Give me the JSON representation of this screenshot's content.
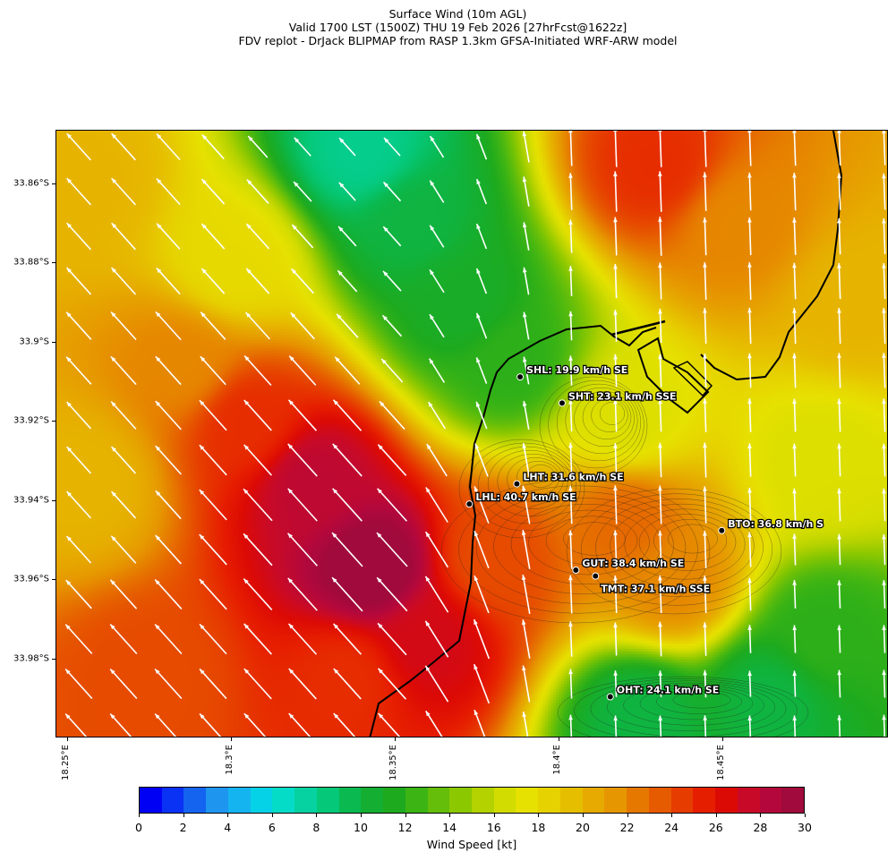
{
  "title": {
    "lines": [
      "Surface Wind (10m AGL)",
      "Valid 1700 LST (1500Z) THU 19 Feb 2026 [27hrFcst@1622z]",
      "FDV replot - DrJack BLIPMAP from RASP 1.3km GFSA-Initiated WRF-ARW model"
    ]
  },
  "map": {
    "lon_range": [
      18.2465,
      18.5005
    ],
    "lat_range": [
      -34.0,
      -33.8465
    ],
    "y_ticks": [
      {
        "lat": -33.86,
        "label": "33.86°S"
      },
      {
        "lat": -33.88,
        "label": "33.88°S"
      },
      {
        "lat": -33.9,
        "label": "33.9°S"
      },
      {
        "lat": -33.92,
        "label": "33.92°S"
      },
      {
        "lat": -33.94,
        "label": "33.94°S"
      },
      {
        "lat": -33.96,
        "label": "33.96°S"
      },
      {
        "lat": -33.98,
        "label": "33.98°S"
      }
    ],
    "x_ticks": [
      {
        "lon": 18.25,
        "label": "18.25°E"
      },
      {
        "lon": 18.3,
        "label": "18.3°E"
      },
      {
        "lon": 18.35,
        "label": "18.35°E"
      },
      {
        "lon": 18.4,
        "label": "18.4°E"
      },
      {
        "lon": 18.45,
        "label": "18.45°E"
      }
    ],
    "stations": [
      {
        "name": "SHL",
        "label": "SHL: 19.9 km/h SE",
        "lon": 18.388,
        "lat": -33.9087
      },
      {
        "name": "SHT",
        "label": "SHT: 23.1 km/h SSE",
        "lon": 18.4008,
        "lat": -33.9153
      },
      {
        "name": "LHT",
        "label": "LHT: 31.6 km/h SE",
        "lon": 18.387,
        "lat": -33.9357
      },
      {
        "name": "LHL",
        "label": "LHL: 40.7 km/h SE",
        "lon": 18.3725,
        "lat": -33.9408
      },
      {
        "name": "BTO",
        "label": "BTO: 36.8 km/h S",
        "lon": 18.4495,
        "lat": -33.9475
      },
      {
        "name": "GUT",
        "label": "GUT: 38.4 km/h SE",
        "lon": 18.405,
        "lat": -33.9575
      },
      {
        "name": "TMT",
        "label": "TMT: 37.1 km/h SSE",
        "lon": 18.411,
        "lat": -33.959
      },
      {
        "name": "OHT",
        "label": "OHT: 24.1 km/h SE",
        "lon": 18.4155,
        "lat": -33.9895
      }
    ],
    "wind_field": {
      "units": "kt",
      "centers": [
        {
          "lon": 18.343,
          "lat": -33.957,
          "speed": 30
        },
        {
          "lon": 18.325,
          "lat": -33.935,
          "speed": 28
        },
        {
          "lon": 18.305,
          "lat": -33.92,
          "speed": 25
        },
        {
          "lon": 18.285,
          "lat": -33.905,
          "speed": 22
        },
        {
          "lon": 18.275,
          "lat": -33.985,
          "speed": 24
        },
        {
          "lon": 18.335,
          "lat": -33.985,
          "speed": 25
        },
        {
          "lon": 18.36,
          "lat": -33.975,
          "speed": 27
        },
        {
          "lon": 18.38,
          "lat": -33.955,
          "speed": 24
        },
        {
          "lon": 18.42,
          "lat": -33.945,
          "speed": 23
        },
        {
          "lon": 18.435,
          "lat": -33.96,
          "speed": 22
        },
        {
          "lon": 18.34,
          "lat": -33.852,
          "speed": 8
        },
        {
          "lon": 18.355,
          "lat": -33.87,
          "speed": 10
        },
        {
          "lon": 18.37,
          "lat": -33.89,
          "speed": 11
        },
        {
          "lon": 18.385,
          "lat": -33.905,
          "speed": 12
        },
        {
          "lon": 18.43,
          "lat": -33.855,
          "speed": 25
        },
        {
          "lon": 18.455,
          "lat": -33.87,
          "speed": 22
        },
        {
          "lon": 18.49,
          "lat": -33.89,
          "speed": 20
        },
        {
          "lon": 18.48,
          "lat": -33.975,
          "speed": 12
        },
        {
          "lon": 18.465,
          "lat": -33.99,
          "speed": 10
        },
        {
          "lon": 18.425,
          "lat": -33.995,
          "speed": 10
        },
        {
          "lon": 18.255,
          "lat": -33.86,
          "speed": 20
        },
        {
          "lon": 18.255,
          "lat": -33.935,
          "speed": 20
        },
        {
          "lon": 18.3,
          "lat": -33.88,
          "speed": 18
        },
        {
          "lon": 18.42,
          "lat": -33.92,
          "speed": 17
        },
        {
          "lon": 18.48,
          "lat": -33.93,
          "speed": 17
        }
      ]
    },
    "arrow_color": "#ffffff",
    "coast_color": "#000000"
  },
  "colorbar": {
    "label": "Wind Speed [kt]",
    "vmin": 0,
    "vmax": 30,
    "tick_labels": [
      "0",
      "2",
      "4",
      "6",
      "8",
      "10",
      "12",
      "14",
      "16",
      "18",
      "20",
      "22",
      "24",
      "26",
      "28",
      "30"
    ],
    "colors": [
      "#0000f5",
      "#0a32f5",
      "#1464f0",
      "#1e96f0",
      "#14b4f0",
      "#05d2e6",
      "#05dcc8",
      "#05d2a0",
      "#05c878",
      "#0ab950",
      "#14af32",
      "#1eaa1e",
      "#3cb414",
      "#64be0a",
      "#8cc800",
      "#b4d200",
      "#d2dc00",
      "#e6e100",
      "#e6d200",
      "#e6be00",
      "#e6aa00",
      "#e69600",
      "#e67800",
      "#e65a00",
      "#e63c00",
      "#e61e00",
      "#dc0a05",
      "#c80a28",
      "#b4083c",
      "#a00a3c"
    ]
  }
}
